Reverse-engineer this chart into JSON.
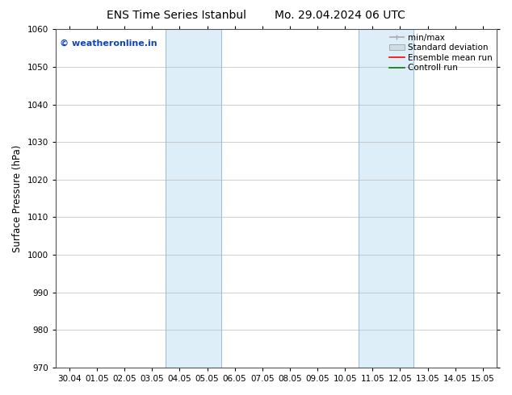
{
  "title_left": "ENS Time Series Istanbul",
  "title_right": "Mo. 29.04.2024 06 UTC",
  "ylabel": "Surface Pressure (hPa)",
  "ylim": [
    970,
    1060
  ],
  "yticks": [
    970,
    980,
    990,
    1000,
    1010,
    1020,
    1030,
    1040,
    1050,
    1060
  ],
  "xtick_labels": [
    "30.04",
    "01.05",
    "02.05",
    "03.05",
    "04.05",
    "05.05",
    "06.05",
    "07.05",
    "08.05",
    "09.05",
    "10.05",
    "11.05",
    "12.05",
    "13.05",
    "14.05",
    "15.05"
  ],
  "shaded_regions": [
    {
      "start": 4,
      "end": 6
    },
    {
      "start": 11,
      "end": 13
    }
  ],
  "shaded_color": "#ddeef8",
  "shaded_edge_color": "#99bbdd",
  "watermark_text": "© weatheronline.in",
  "watermark_color": "#1144bb",
  "background_color": "#ffffff",
  "grid_color": "#bbbbbb",
  "spine_color": "#555555",
  "font_size_title": 10,
  "font_size_tick": 7.5,
  "font_size_ylabel": 8.5,
  "font_size_watermark": 8,
  "font_size_legend": 7.5,
  "legend_minmax_color": "#aaaaaa",
  "legend_std_facecolor": "#ccdde8",
  "legend_std_edgecolor": "#aaaaaa",
  "legend_ens_color": "red",
  "legend_ctrl_color": "green"
}
